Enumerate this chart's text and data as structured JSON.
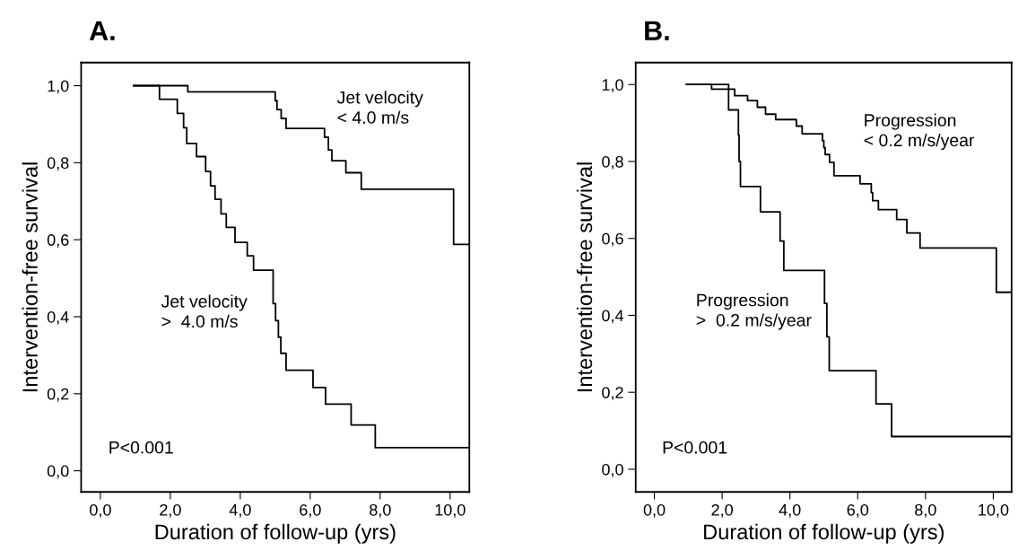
{
  "chart_data": [
    {
      "type": "step",
      "title": "A.",
      "xlabel": "Duration of follow-up (yrs)",
      "ylabel": "Intervention-free survival",
      "xlim": [
        -0.55,
        10.55
      ],
      "ylim": [
        -0.055,
        1.06
      ],
      "xticks": [
        {
          "value": 0,
          "label": "0,0"
        },
        {
          "value": 2,
          "label": "2,0"
        },
        {
          "value": 4,
          "label": "4,0"
        },
        {
          "value": 6,
          "label": "6,0"
        },
        {
          "value": 8,
          "label": "8,0"
        },
        {
          "value": 10,
          "label": "10,0"
        }
      ],
      "yticks": [
        {
          "value": 0,
          "label": "0,0"
        },
        {
          "value": 0.2,
          "label": "0,2"
        },
        {
          "value": 0.4,
          "label": "0,4"
        },
        {
          "value": 0.6,
          "label": "0,6"
        },
        {
          "value": 0.8,
          "label": "0,8"
        },
        {
          "value": 1,
          "label": "1,0"
        }
      ],
      "grid": false,
      "legend": false,
      "series": [
        {
          "name": "Jet velocity\n< 4.0 m/s",
          "color": "#000000",
          "x": [
            0.95,
            2.5,
            5.0,
            5.05,
            5.17,
            5.31,
            6.41,
            6.52,
            6.62,
            7.02,
            7.46,
            10.1,
            10.55
          ],
          "values": [
            1.0,
            0.984,
            0.961,
            0.938,
            0.915,
            0.889,
            0.866,
            0.833,
            0.805,
            0.774,
            0.731,
            0.588,
            0.588
          ]
        },
        {
          "name": "Jet velocity\n>  4.0 m/s",
          "color": "#000000",
          "x": [
            0.95,
            1.69,
            2.2,
            2.38,
            2.47,
            2.75,
            3.01,
            3.15,
            3.28,
            3.45,
            3.6,
            3.85,
            4.2,
            4.38,
            4.94,
            5.01,
            5.09,
            5.16,
            5.31,
            6.08,
            6.44,
            7.17,
            7.86,
            10.55
          ],
          "values": [
            1.0,
            0.965,
            0.928,
            0.891,
            0.85,
            0.816,
            0.777,
            0.74,
            0.705,
            0.667,
            0.632,
            0.593,
            0.558,
            0.521,
            0.434,
            0.39,
            0.347,
            0.305,
            0.261,
            0.216,
            0.173,
            0.119,
            0.06,
            0.06
          ]
        }
      ],
      "annotations": [
        "P<0.001"
      ]
    },
    {
      "type": "step",
      "title": "B.",
      "xlabel": "Duration of follow-up (yrs)",
      "ylabel": "Intervention-free survival",
      "xlim": [
        -0.55,
        10.54
      ],
      "ylim": [
        -0.059,
        1.057
      ],
      "xticks": [
        {
          "value": 0,
          "label": "0,0"
        },
        {
          "value": 2,
          "label": "2,0"
        },
        {
          "value": 4,
          "label": "4,0"
        },
        {
          "value": 6,
          "label": "6,0"
        },
        {
          "value": 8,
          "label": "8,0"
        },
        {
          "value": 10,
          "label": "10,0"
        }
      ],
      "yticks": [
        {
          "value": 0,
          "label": "0,0"
        },
        {
          "value": 0.2,
          "label": "0,2"
        },
        {
          "value": 0.4,
          "label": "0,4"
        },
        {
          "value": 0.6,
          "label": "0,6"
        },
        {
          "value": 0.8,
          "label": "0,8"
        },
        {
          "value": 1,
          "label": "1,0"
        }
      ],
      "grid": false,
      "legend": false,
      "series": [
        {
          "name": "Progression\n< 0.2 m/s/year",
          "color": "#000000",
          "x": [
            0.95,
            1.69,
            2.37,
            2.75,
            3.04,
            3.28,
            3.58,
            4.19,
            4.36,
            4.96,
            5.0,
            5.04,
            5.17,
            5.3,
            6.07,
            6.4,
            6.44,
            6.61,
            7.15,
            7.45,
            7.84,
            10.09,
            10.54
          ],
          "values": [
            1.0,
            0.988,
            0.971,
            0.958,
            0.941,
            0.923,
            0.909,
            0.892,
            0.872,
            0.854,
            0.836,
            0.818,
            0.798,
            0.763,
            0.742,
            0.719,
            0.698,
            0.675,
            0.649,
            0.614,
            0.575,
            0.46,
            0.46
          ]
        },
        {
          "name": "Progression\n>  0.2 m/s/year",
          "color": "#000000",
          "x": [
            0.95,
            2.19,
            2.48,
            2.5,
            2.54,
            3.13,
            3.71,
            3.82,
            5.02,
            5.09,
            5.16,
            6.54,
            7.0,
            10.54
          ],
          "values": [
            1.0,
            0.934,
            0.869,
            0.8,
            0.735,
            0.669,
            0.593,
            0.517,
            0.431,
            0.344,
            0.256,
            0.17,
            0.085,
            0.085
          ]
        }
      ],
      "annotations": [
        "P<0.001"
      ]
    }
  ]
}
